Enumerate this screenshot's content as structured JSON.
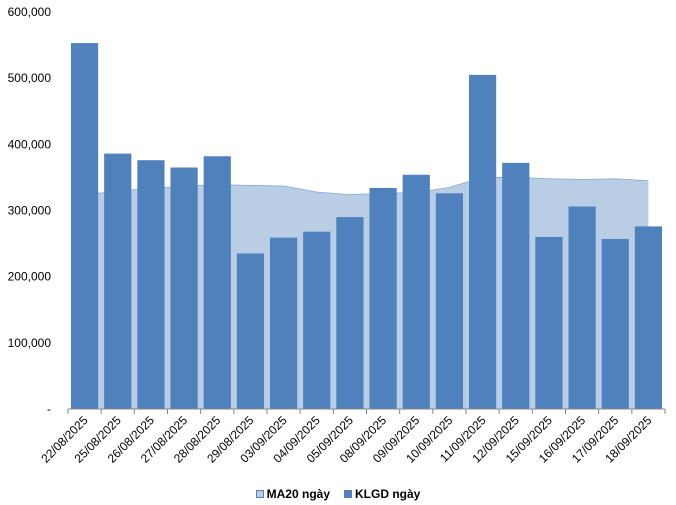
{
  "chart_data": {
    "type": "bar",
    "categories": [
      "22/08/2025",
      "25/08/2025",
      "26/08/2025",
      "27/08/2025",
      "28/08/2025",
      "29/08/2025",
      "03/09/2025",
      "04/09/2025",
      "05/09/2025",
      "08/09/2025",
      "09/09/2025",
      "10/09/2025",
      "11/09/2025",
      "12/09/2025",
      "15/09/2025",
      "16/09/2025",
      "17/09/2025",
      "18/09/2025"
    ],
    "series": [
      {
        "name": "KLGD ngày",
        "type": "bar",
        "color": "#4f81bd",
        "values": [
          553000,
          386000,
          376000,
          365000,
          382000,
          235000,
          259000,
          268000,
          290000,
          334000,
          354000,
          326000,
          505000,
          372000,
          260000,
          306000,
          257000,
          276000
        ]
      },
      {
        "name": "MA20 ngày",
        "type": "area",
        "color": "#b9cde5",
        "line_color": "#4f81bd",
        "values": [
          323000,
          330000,
          333000,
          337000,
          339000,
          338000,
          337000,
          328000,
          324000,
          326000,
          327000,
          335000,
          350000,
          350000,
          348000,
          347000,
          348000,
          345000
        ]
      }
    ],
    "y_ticks": [
      0,
      100000,
      200000,
      300000,
      400000,
      500000,
      600000
    ],
    "y_tick_labels": [
      "-",
      "100,000",
      "200,000",
      "300,000",
      "400,000",
      "500,000",
      "600,000"
    ],
    "ylim": [
      0,
      600000
    ],
    "grid": false,
    "legend_position": "bottom"
  },
  "legend": {
    "area_label": "MA20 ngày",
    "bar_label": "KLGD ngày"
  }
}
